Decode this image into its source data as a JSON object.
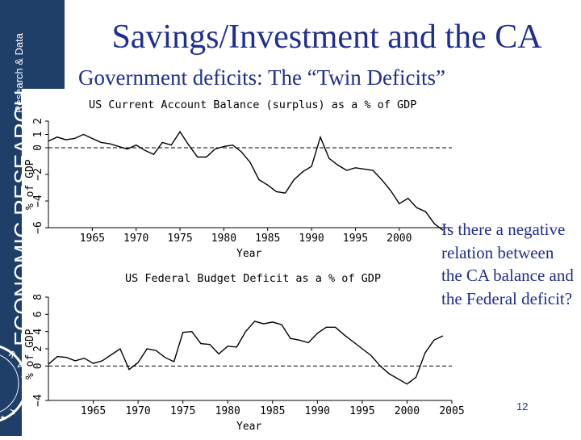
{
  "slide": {
    "title": "Savings/Investment and the CA",
    "subtitle": "Government deficits:  The “Twin Deficits”",
    "question": "Is there a negative relation between the CA balance and the Federal deficit?",
    "page_number": "12",
    "sidebar_text_large": "ECONOMIC RESEARCH",
    "sidebar_text_small": "Research & Data"
  },
  "colors": {
    "sidebar": "#1f3f69",
    "title": "#1f2f8f",
    "chart_line": "#000000"
  },
  "chart_data": [
    {
      "type": "line",
      "title": "US Current Account Balance (surplus) as a % of GDP",
      "xlabel": "Year",
      "ylabel": "% of GDP",
      "xlim": [
        1960,
        2006
      ],
      "ylim": [
        -6,
        2
      ],
      "xticks": [
        1965,
        1970,
        1975,
        1980,
        1985,
        1990,
        1995,
        2000
      ],
      "yticks": [
        -6,
        -4,
        -2,
        0,
        1,
        2
      ],
      "reference_line": 0,
      "x": [
        1960,
        1961,
        1962,
        1963,
        1964,
        1965,
        1966,
        1967,
        1968,
        1969,
        1970,
        1971,
        1972,
        1973,
        1974,
        1975,
        1976,
        1977,
        1978,
        1979,
        1980,
        1981,
        1982,
        1983,
        1984,
        1985,
        1986,
        1987,
        1988,
        1989,
        1990,
        1991,
        1992,
        1993,
        1994,
        1995,
        1996,
        1997,
        1998,
        1999,
        2000,
        2001,
        2002,
        2003,
        2004,
        2005
      ],
      "values": [
        0.5,
        0.8,
        0.6,
        0.7,
        1.0,
        0.7,
        0.4,
        0.3,
        0.1,
        -0.1,
        0.2,
        -0.2,
        -0.5,
        0.4,
        0.2,
        1.2,
        0.2,
        -0.7,
        -0.7,
        -0.1,
        0.1,
        0.2,
        -0.3,
        -1.1,
        -2.4,
        -2.8,
        -3.3,
        -3.4,
        -2.4,
        -1.8,
        -1.4,
        0.8,
        -0.8,
        -1.3,
        -1.7,
        -1.5,
        -1.6,
        -1.7,
        -2.4,
        -3.2,
        -4.2,
        -3.8,
        -4.5,
        -4.8,
        -5.7,
        -6.2
      ]
    },
    {
      "type": "line",
      "title": "US Federal Budget Deficit as a % of GDP",
      "xlabel": "Year",
      "ylabel": "% of GDP",
      "xlim": [
        1960,
        2005
      ],
      "ylim": [
        -4,
        8
      ],
      "xticks": [
        1965,
        1970,
        1975,
        1980,
        1985,
        1990,
        1995,
        2000,
        2005
      ],
      "yticks": [
        -4,
        0,
        2,
        4,
        6,
        8
      ],
      "reference_line": 0,
      "x": [
        1960,
        1961,
        1962,
        1963,
        1964,
        1965,
        1966,
        1967,
        1968,
        1969,
        1970,
        1971,
        1972,
        1973,
        1974,
        1975,
        1976,
        1977,
        1978,
        1979,
        1980,
        1981,
        1982,
        1983,
        1984,
        1985,
        1986,
        1987,
        1988,
        1989,
        1990,
        1991,
        1992,
        1993,
        1994,
        1995,
        1996,
        1997,
        1998,
        1999,
        2000,
        2001,
        2002,
        2003,
        2004
      ],
      "values": [
        0.2,
        1.1,
        1.0,
        0.6,
        0.9,
        0.3,
        0.6,
        1.3,
        2.0,
        -0.4,
        0.4,
        2.0,
        1.8,
        1.0,
        0.5,
        3.9,
        4.0,
        2.6,
        2.5,
        1.4,
        2.3,
        2.2,
        4.0,
        5.2,
        4.9,
        5.1,
        4.8,
        3.2,
        3.0,
        2.7,
        3.8,
        4.5,
        4.5,
        3.6,
        2.8,
        2.0,
        1.2,
        0.0,
        -0.9,
        -1.5,
        -2.1,
        -1.3,
        1.5,
        3.0,
        3.5
      ]
    }
  ]
}
